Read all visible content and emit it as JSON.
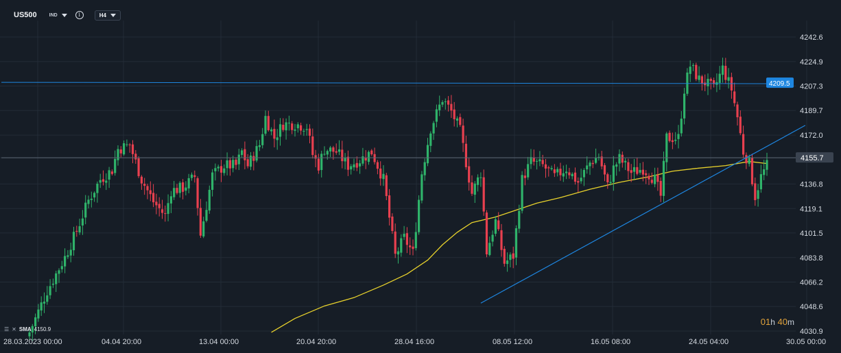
{
  "header": {
    "symbol": "US500",
    "exchange": "IND",
    "timeframe": "H4"
  },
  "indicator": {
    "name": "SMA",
    "value": "4150.9"
  },
  "countdown": {
    "hours": "01",
    "hours_unit": "h",
    "minutes": "40",
    "minutes_unit": "m"
  },
  "colors": {
    "background": "#161d26",
    "bull": "#2fb36a",
    "bear": "#e8404f",
    "sma": "#e8d22c",
    "trendline": "#1e86e0",
    "resistance": "#1e86e0",
    "grid": "#232c37",
    "axis_text": "#d6dbe2"
  },
  "chart_data": {
    "type": "candlestick",
    "y_axis": {
      "ticks": [
        4030.9,
        4048.6,
        4066.2,
        4083.8,
        4101.5,
        4119.1,
        4136.8,
        4155.7,
        4172.0,
        4189.7,
        4207.3,
        4224.9,
        4242.6
      ],
      "labels": [
        "4030.9",
        "4048.6",
        "4066.2",
        "4083.8",
        "4101.5",
        "4119.1",
        "4136.8",
        "4155.7",
        "4172.0",
        "4189.7",
        "4207.3",
        "4224.9",
        "4242.6"
      ],
      "range": [
        4030.9,
        4242.6
      ]
    },
    "x_axis": {
      "labels": [
        "28.03.2023  00:00",
        "04.04  20:00",
        "13.04  00:00",
        "20.04  20:00",
        "28.04  16:00",
        "08.05  12:00",
        "16.05  08:00",
        "24.05  04:00",
        "30.05  00:00"
      ],
      "range_bars": [
        0,
        263
      ]
    },
    "price_tags": [
      {
        "value": 4209.5,
        "label": "4209.5",
        "style": "blue"
      },
      {
        "value": 4155.7,
        "label": "4155.7",
        "style": "gray"
      }
    ],
    "horizontal_lines": [
      {
        "value": 4209.5,
        "style": "resistance"
      },
      {
        "value": 4155.7,
        "style": "current"
      }
    ],
    "trendline": {
      "from": {
        "bar": 153,
        "price": 4051
      },
      "to": {
        "bar": 263,
        "price": 4179
      }
    },
    "keypoints": [
      [
        0,
        4030
      ],
      [
        6,
        4060
      ],
      [
        12,
        4084
      ],
      [
        16,
        4103
      ],
      [
        20,
        4125
      ],
      [
        24,
        4140
      ],
      [
        28,
        4147
      ],
      [
        30,
        4162
      ],
      [
        34,
        4165
      ],
      [
        38,
        4140
      ],
      [
        42,
        4124
      ],
      [
        46,
        4114
      ],
      [
        48,
        4132
      ],
      [
        52,
        4134
      ],
      [
        56,
        4142
      ],
      [
        58,
        4100
      ],
      [
        62,
        4143
      ],
      [
        66,
        4150
      ],
      [
        70,
        4150
      ],
      [
        72,
        4160
      ],
      [
        74,
        4150
      ],
      [
        78,
        4165
      ],
      [
        80,
        4185
      ],
      [
        83,
        4170
      ],
      [
        86,
        4180
      ],
      [
        90,
        4180
      ],
      [
        94,
        4178
      ],
      [
        96,
        4158
      ],
      [
        98,
        4150
      ],
      [
        100,
        4162
      ],
      [
        104,
        4160
      ],
      [
        108,
        4150
      ],
      [
        112,
        4154
      ],
      [
        116,
        4160
      ],
      [
        120,
        4140
      ],
      [
        124,
        4085
      ],
      [
        127,
        4098
      ],
      [
        130,
        4087
      ],
      [
        133,
        4145
      ],
      [
        136,
        4177
      ],
      [
        140,
        4198
      ],
      [
        143,
        4189
      ],
      [
        146,
        4175
      ],
      [
        150,
        4130
      ],
      [
        153,
        4145
      ],
      [
        155,
        4088
      ],
      [
        158,
        4110
      ],
      [
        161,
        4080
      ],
      [
        164,
        4085
      ],
      [
        167,
        4140
      ],
      [
        170,
        4153
      ],
      [
        174,
        4150
      ],
      [
        178,
        4142
      ],
      [
        182,
        4148
      ],
      [
        186,
        4138
      ],
      [
        190,
        4152
      ],
      [
        193,
        4157
      ],
      [
        196,
        4135
      ],
      [
        198,
        4148
      ],
      [
        200,
        4155
      ],
      [
        204,
        4145
      ],
      [
        208,
        4148
      ],
      [
        212,
        4140
      ],
      [
        214,
        4128
      ],
      [
        216,
        4170
      ],
      [
        220,
        4170
      ],
      [
        222,
        4205
      ],
      [
        224,
        4222
      ],
      [
        227,
        4212
      ],
      [
        229,
        4210
      ],
      [
        232,
        4205
      ],
      [
        235,
        4220
      ],
      [
        238,
        4205
      ],
      [
        240,
        4185
      ],
      [
        242,
        4160
      ],
      [
        244,
        4152
      ],
      [
        246,
        4128
      ],
      [
        248,
        4142
      ],
      [
        250,
        4150
      ]
    ],
    "sma_points": [
      [
        82,
        4030
      ],
      [
        90,
        4040
      ],
      [
        100,
        4049
      ],
      [
        110,
        4055
      ],
      [
        120,
        4064
      ],
      [
        128,
        4072
      ],
      [
        135,
        4082
      ],
      [
        140,
        4093
      ],
      [
        145,
        4102
      ],
      [
        150,
        4109
      ],
      [
        158,
        4113
      ],
      [
        165,
        4118
      ],
      [
        172,
        4123
      ],
      [
        180,
        4127
      ],
      [
        190,
        4133
      ],
      [
        200,
        4138
      ],
      [
        210,
        4142
      ],
      [
        218,
        4146
      ],
      [
        226,
        4148
      ],
      [
        236,
        4150
      ],
      [
        244,
        4153
      ],
      [
        250,
        4151.5
      ]
    ],
    "grid": true
  }
}
